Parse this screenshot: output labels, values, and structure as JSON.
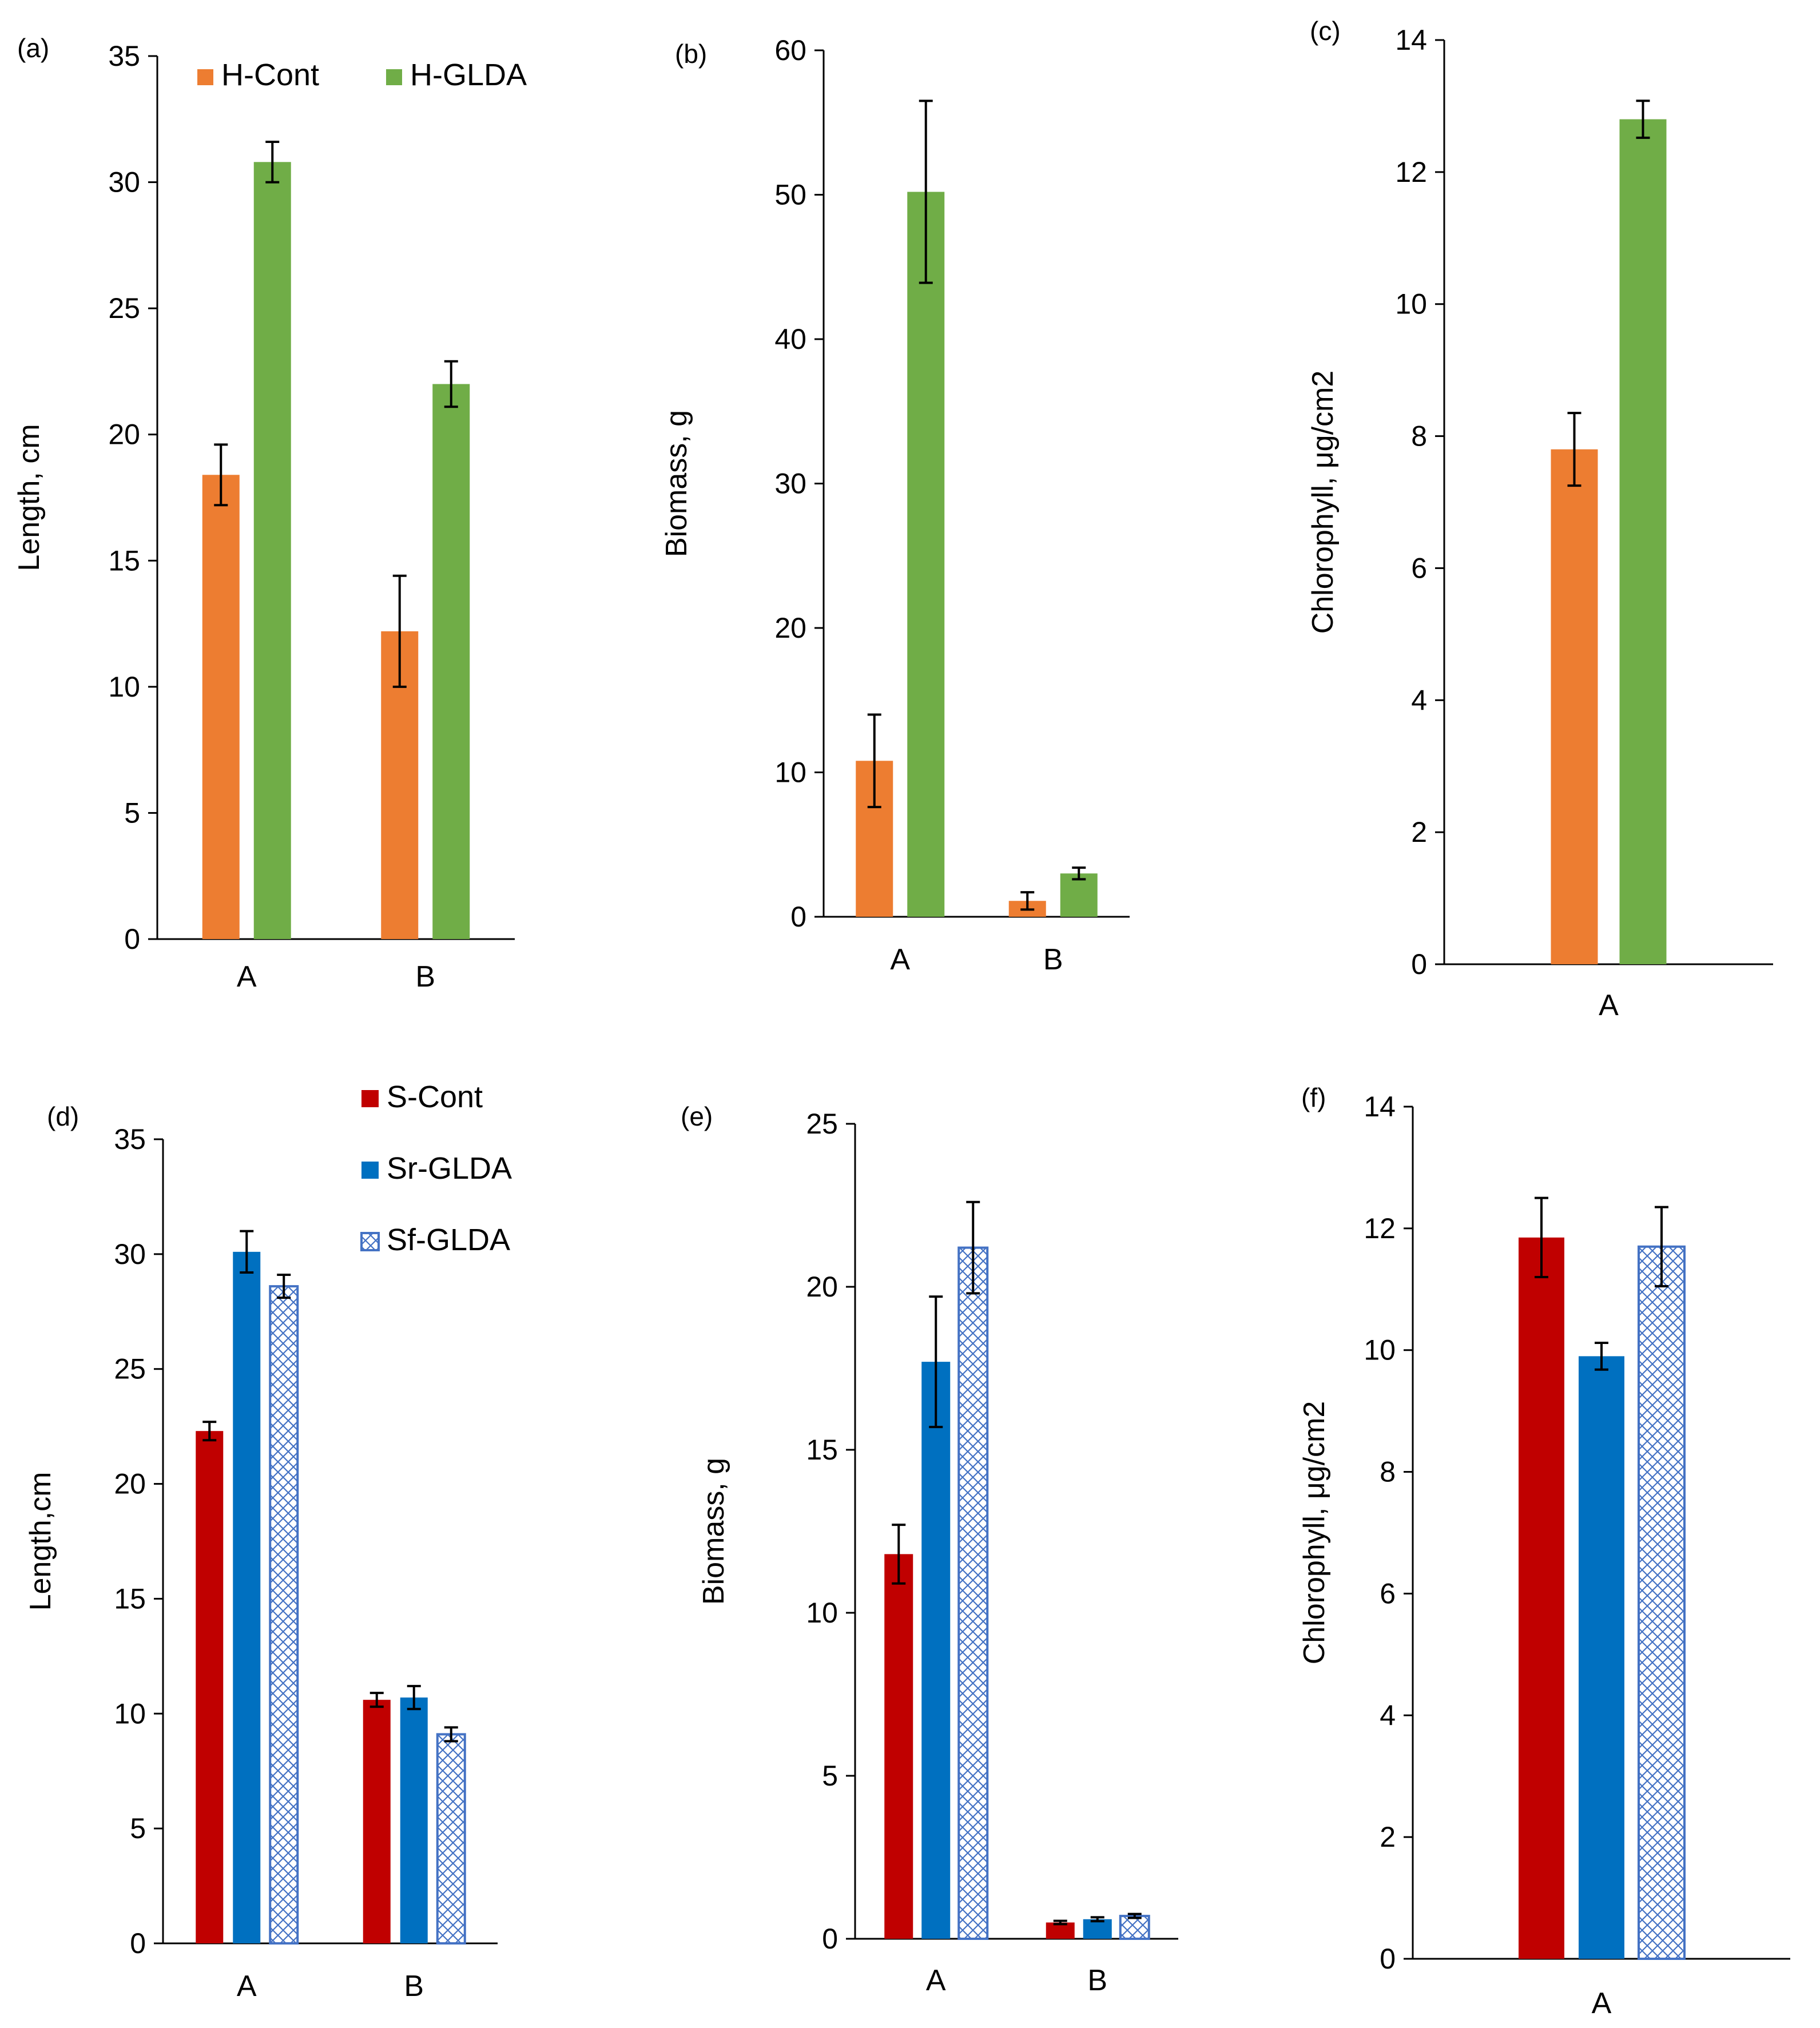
{
  "colors": {
    "h_cont": "#ED7D31",
    "h_gldA": "#70AD47",
    "s_cont": "#C00000",
    "sr_gldA": "#0070C0",
    "sf_gldA": "#4472C4",
    "axis": "#000000"
  },
  "legends": {
    "top": [
      {
        "name": "H-Cont",
        "fill": "h_cont",
        "pattern": false
      },
      {
        "name": "H-GLDA",
        "fill": "h_gldA",
        "pattern": false
      }
    ],
    "bottom": [
      {
        "name": "S-Cont",
        "fill": "s_cont",
        "pattern": false
      },
      {
        "name": "Sr-GLDA",
        "fill": "sr_gldA",
        "pattern": false
      },
      {
        "name": "Sf-GLDA",
        "fill": "sf_gldA",
        "pattern": true
      }
    ]
  },
  "chart_data": [
    {
      "id": "a",
      "panel_label": "(a)",
      "type": "bar",
      "ylabel": "Length, cm",
      "xlabel": "",
      "ylim": [
        0,
        35
      ],
      "ytick_step": 5,
      "ytick_decimals": 0,
      "categories": [
        "A",
        "B"
      ],
      "series": [
        {
          "name": "H-Cont",
          "color": "h_cont",
          "pattern": false,
          "values": [
            18.4,
            12.2
          ],
          "errors": [
            1.2,
            2.2
          ]
        },
        {
          "name": "H-GLDA",
          "color": "h_gldA",
          "pattern": false,
          "values": [
            30.8,
            22.0
          ],
          "errors": [
            0.8,
            0.9
          ]
        }
      ]
    },
    {
      "id": "b",
      "panel_label": "(b)",
      "type": "bar",
      "ylabel": "Biomass, g",
      "xlabel": "",
      "ylim": [
        0,
        60
      ],
      "ytick_step": 10,
      "ytick_decimals": 0,
      "categories": [
        "A",
        "B"
      ],
      "series": [
        {
          "name": "H-Cont",
          "color": "h_cont",
          "pattern": false,
          "values": [
            10.8,
            1.1
          ],
          "errors": [
            3.2,
            0.6
          ]
        },
        {
          "name": "H-GLDA",
          "color": "h_gldA",
          "pattern": false,
          "values": [
            50.2,
            3.0
          ],
          "errors": [
            6.3,
            0.4
          ]
        }
      ]
    },
    {
      "id": "c",
      "panel_label": "(c)",
      "type": "bar",
      "ylabel": "Chlorophyll, μg/cm2",
      "xlabel": "",
      "ylim": [
        0,
        14
      ],
      "ytick_step": 2,
      "ytick_decimals": 0,
      "categories": [
        "A"
      ],
      "series": [
        {
          "name": "H-Cont",
          "color": "h_cont",
          "pattern": false,
          "values": [
            7.8
          ],
          "errors": [
            0.55
          ]
        },
        {
          "name": "H-GLDA",
          "color": "h_gldA",
          "pattern": false,
          "values": [
            12.8
          ],
          "errors": [
            0.28
          ]
        }
      ]
    },
    {
      "id": "d",
      "panel_label": "(d)",
      "type": "bar",
      "ylabel": "Length,cm",
      "xlabel": "",
      "ylim": [
        0,
        35
      ],
      "ytick_step": 5,
      "ytick_decimals": 0,
      "categories": [
        "A",
        "B"
      ],
      "series": [
        {
          "name": "S-Cont",
          "color": "s_cont",
          "pattern": false,
          "values": [
            22.3,
            10.6
          ],
          "errors": [
            0.4,
            0.3
          ]
        },
        {
          "name": "Sr-GLDA",
          "color": "sr_gldA",
          "pattern": false,
          "values": [
            30.1,
            10.7
          ],
          "errors": [
            0.9,
            0.5
          ]
        },
        {
          "name": "Sf-GLDA",
          "color": "sf_gldA",
          "pattern": true,
          "values": [
            28.6,
            9.1
          ],
          "errors": [
            0.5,
            0.3
          ]
        }
      ]
    },
    {
      "id": "e",
      "panel_label": "(e)",
      "type": "bar",
      "ylabel": "Biomass, g",
      "xlabel": "",
      "ylim": [
        0,
        25
      ],
      "ytick_step": 5,
      "ytick_decimals": 0,
      "categories": [
        "A",
        "B"
      ],
      "series": [
        {
          "name": "S-Cont",
          "color": "s_cont",
          "pattern": false,
          "values": [
            11.8,
            0.5
          ],
          "errors": [
            0.9,
            0.05
          ]
        },
        {
          "name": "Sr-GLDA",
          "color": "sr_gldA",
          "pattern": false,
          "values": [
            17.7,
            0.6
          ],
          "errors": [
            2.0,
            0.06
          ]
        },
        {
          "name": "Sf-GLDA",
          "color": "sf_gldA",
          "pattern": true,
          "values": [
            21.2,
            0.7
          ],
          "errors": [
            1.4,
            0.06
          ]
        }
      ]
    },
    {
      "id": "f",
      "panel_label": "(f)",
      "type": "bar",
      "ylabel": "Chlorophyll, μg/cm2",
      "xlabel": "",
      "ylim": [
        0,
        14
      ],
      "ytick_step": 2,
      "ytick_decimals": 0,
      "categories": [
        "A"
      ],
      "series": [
        {
          "name": "S-Cont",
          "color": "s_cont",
          "pattern": false,
          "values": [
            11.85
          ],
          "errors": [
            0.65
          ]
        },
        {
          "name": "Sr-GLDA",
          "color": "sr_gldA",
          "pattern": false,
          "values": [
            9.9
          ],
          "errors": [
            0.22
          ]
        },
        {
          "name": "Sf-GLDA",
          "color": "sf_gldA",
          "pattern": true,
          "values": [
            11.7
          ],
          "errors": [
            0.65
          ]
        }
      ]
    }
  ]
}
